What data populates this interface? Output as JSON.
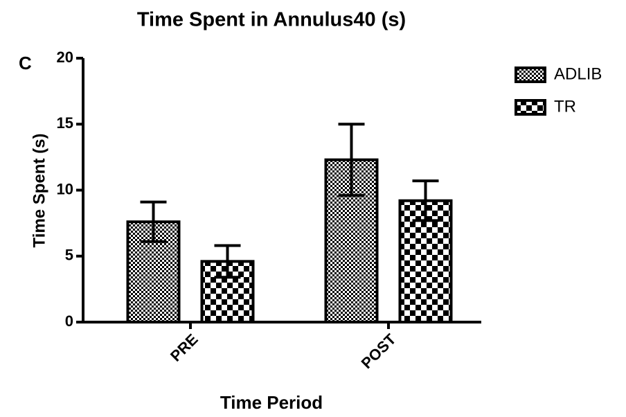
{
  "chart_data": {
    "type": "bar",
    "title": "Time Spent in Annulus40 (s)",
    "annotation": "C",
    "x_label": "Time Period",
    "y_label": "Time Spent (s)",
    "categories": [
      "PRE",
      "POST"
    ],
    "series": [
      {
        "name": "ADLIB",
        "color": "#000000",
        "values": [
          7.6,
          12.3
        ],
        "errors": [
          1.5,
          2.7
        ]
      },
      {
        "name": "TR",
        "color": "#000000",
        "values": [
          4.6,
          9.2
        ],
        "errors": [
          1.2,
          1.5
        ]
      }
    ],
    "ylim": [
      0,
      20
    ],
    "yticks": [
      0,
      5,
      10,
      15,
      20
    ],
    "legend": "right"
  }
}
